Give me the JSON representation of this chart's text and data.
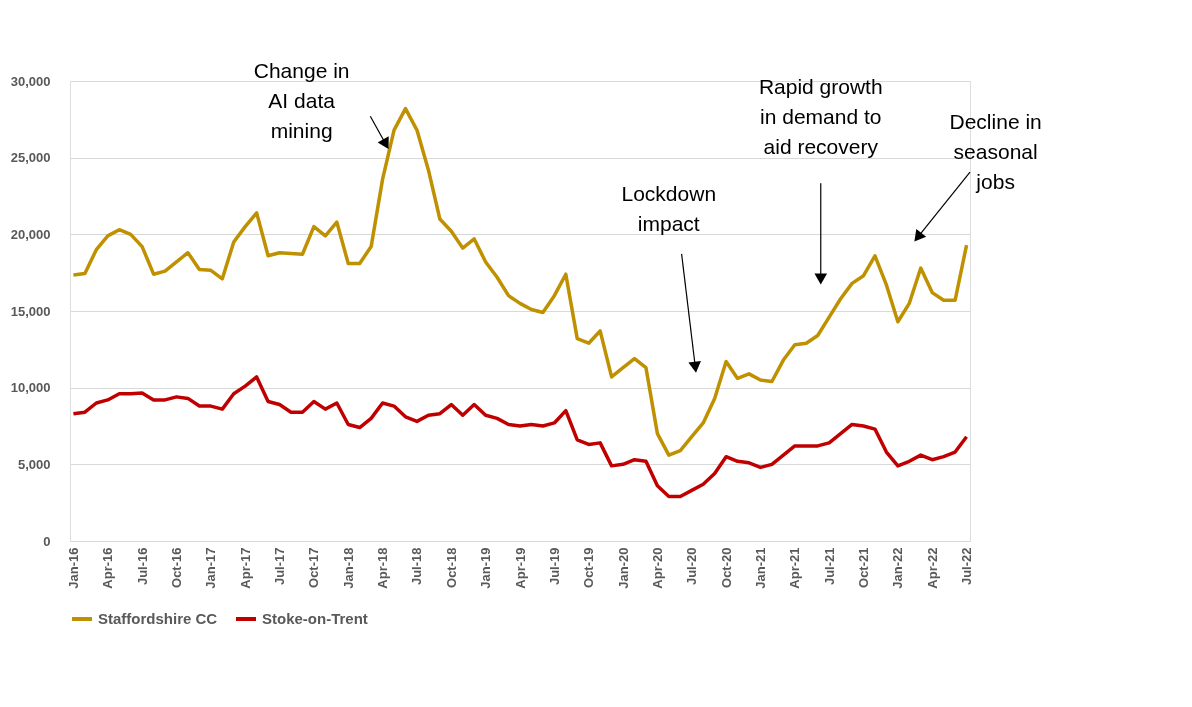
{
  "chart_data": {
    "type": "line",
    "categories": [
      "Jan-16",
      null,
      null,
      "Apr-16",
      null,
      null,
      "Jul-16",
      null,
      null,
      "Oct-16",
      null,
      null,
      "Jan-17",
      null,
      null,
      "Apr-17",
      null,
      null,
      "Jul-17",
      null,
      null,
      "Oct-17",
      null,
      null,
      "Jan-18",
      null,
      null,
      "Apr-18",
      null,
      null,
      "Jul-18",
      null,
      null,
      "Oct-18",
      null,
      null,
      "Jan-19",
      null,
      null,
      "Apr-19",
      null,
      null,
      "Jul-19",
      null,
      null,
      "Oct-19",
      null,
      null,
      "Jan-20",
      null,
      null,
      "Apr-20",
      null,
      null,
      "Jul-20",
      null,
      null,
      "Oct-20",
      null,
      null,
      "Jan-21",
      null,
      null,
      "Apr-21",
      null,
      null,
      "Jul-21",
      null,
      null,
      "Oct-21",
      null,
      null,
      "Jan-22",
      null,
      null,
      "Apr-22",
      null,
      null,
      "Jul-22"
    ],
    "series": [
      {
        "name": "Staffordshire CC",
        "color": "#bf9000",
        "values": [
          17350,
          17450,
          19000,
          19900,
          20300,
          20000,
          19200,
          17400,
          17600,
          18200,
          18800,
          17700,
          17650,
          17100,
          19500,
          20500,
          21400,
          18600,
          18800,
          18750,
          18700,
          20500,
          19900,
          20800,
          18100,
          18100,
          19200,
          23600,
          26800,
          28200,
          26800,
          24200,
          21000,
          20200,
          19100,
          19700,
          18200,
          17200,
          16000,
          15500,
          15100,
          14900,
          16000,
          17400,
          13200,
          12900,
          13700,
          10700,
          11300,
          11900,
          11300,
          7000,
          5600,
          5900,
          6800,
          7700,
          9300,
          11700,
          10600,
          10900,
          10500,
          10400,
          11800,
          12800,
          12900,
          13400,
          14600,
          15800,
          16800,
          17300,
          18600,
          16700,
          14300,
          15500,
          17800,
          16200,
          15700,
          15700,
          19300
        ]
      },
      {
        "name": "Stoke-on-Trent",
        "color": "#c00000",
        "values": [
          8300,
          8400,
          9000,
          9200,
          9600,
          9600,
          9650,
          9200,
          9200,
          9400,
          9300,
          8800,
          8800,
          8600,
          9600,
          10100,
          10700,
          9100,
          8900,
          8400,
          8400,
          9100,
          8600,
          9000,
          7600,
          7400,
          8000,
          9000,
          8800,
          8100,
          7800,
          8200,
          8300,
          8900,
          8200,
          8900,
          8200,
          8000,
          7600,
          7500,
          7600,
          7500,
          7700,
          8500,
          6600,
          6300,
          6400,
          4900,
          5000,
          5300,
          5200,
          3600,
          2900,
          2900,
          3300,
          3700,
          4400,
          5500,
          5200,
          5100,
          4800,
          5000,
          5600,
          6200,
          6200,
          6200,
          6400,
          7000,
          7600,
          7500,
          7300,
          5800,
          4900,
          5200,
          5600,
          5300,
          5500,
          5800,
          6800
        ]
      }
    ],
    "ylim": [
      0,
      30000
    ],
    "yticks": [
      0,
      {
        "value": 5000,
        "label": "5,000"
      },
      {
        "value": 10000,
        "label": "10,000"
      },
      {
        "value": 15000,
        "label": "15,000"
      },
      {
        "value": 20000,
        "label": "20,000"
      },
      {
        "value": 25000,
        "label": "25,000"
      },
      {
        "value": 30000,
        "label": "30,000"
      }
    ],
    "grid": "y",
    "legend": "bottom",
    "annotations": [
      "Change in\nAI data\nmining",
      "Lockdown\nimpact",
      "Rapid growth\nin demand to\naid recovery",
      "Decline in\nseasonal\njobs"
    ]
  }
}
